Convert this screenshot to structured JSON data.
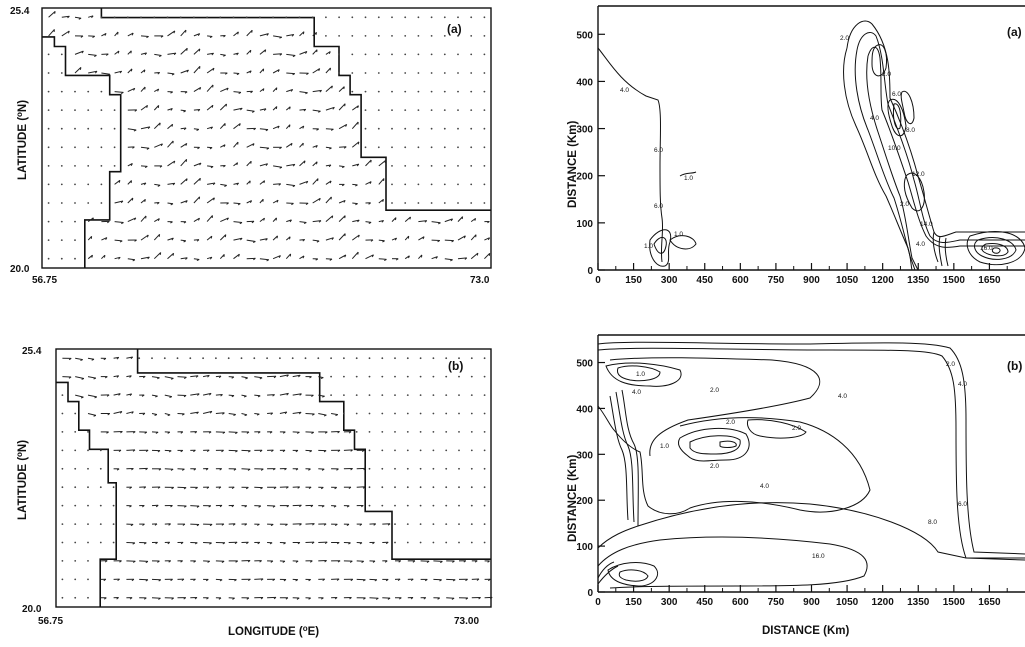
{
  "chart_data": [
    {
      "id": "wind-a",
      "type": "vector-field",
      "panel_label": "(a)",
      "ylabel": "LATITUDE (°N)",
      "ylabel_text": "LATITUDE (",
      "ylabel_sup": "o",
      "ylabel_tail": "N)",
      "xlabel": "",
      "x_tick_labels": [
        "56.75",
        "73.0"
      ],
      "y_tick_labels": [
        "20.0",
        "25.4"
      ],
      "xlim": [
        56.75,
        73.0
      ],
      "ylim": [
        20.0,
        25.4
      ],
      "coastline_steps": [
        [
          [
            58.9,
            25.4
          ],
          [
            58.9,
            25.2
          ],
          [
            66.6,
            25.2
          ],
          [
            66.6,
            24.6
          ],
          [
            67.5,
            24.6
          ],
          [
            67.5,
            24.0
          ],
          [
            67.9,
            24.0
          ],
          [
            67.9,
            23.6
          ],
          [
            68.3,
            23.6
          ],
          [
            68.3,
            22.3
          ],
          [
            69.2,
            22.3
          ],
          [
            69.2,
            21.2
          ],
          [
            73.0,
            21.2
          ]
        ],
        [
          [
            56.75,
            24.8
          ],
          [
            57.2,
            24.8
          ],
          [
            57.2,
            24.6
          ],
          [
            57.6,
            24.6
          ],
          [
            57.6,
            24.0
          ],
          [
            59.2,
            24.0
          ],
          [
            59.2,
            23.6
          ],
          [
            59.6,
            23.6
          ],
          [
            59.6,
            22.0
          ],
          [
            59.2,
            22.0
          ],
          [
            59.2,
            21.0
          ],
          [
            58.3,
            21.0
          ],
          [
            58.3,
            20.0
          ]
        ]
      ],
      "vector_flow": "mostly westerly flow, varied in the north"
    },
    {
      "id": "wind-b",
      "type": "vector-field",
      "panel_label": "(b)",
      "ylabel": "LATITUDE (°N)",
      "ylabel_text": "LATITUDE (",
      "ylabel_sup": "o",
      "ylabel_tail": "N)",
      "xlabel": "LONGITUDE (°E)",
      "xlabel_text": "LONGITUDE (",
      "xlabel_sup": "o",
      "xlabel_tail": "E)",
      "x_tick_labels": [
        "56.75",
        "73.00"
      ],
      "y_tick_labels": [
        "20.0",
        "25.4"
      ],
      "xlim": [
        56.75,
        73.0
      ],
      "ylim": [
        20.0,
        25.4
      ],
      "coastline_steps": [
        [
          [
            59.8,
            25.4
          ],
          [
            59.8,
            24.9
          ],
          [
            66.6,
            24.9
          ],
          [
            66.6,
            24.3
          ],
          [
            67.5,
            24.3
          ],
          [
            67.5,
            23.7
          ],
          [
            67.9,
            23.7
          ],
          [
            67.9,
            23.3
          ],
          [
            68.3,
            23.3
          ],
          [
            68.3,
            22.0
          ],
          [
            69.3,
            22.0
          ],
          [
            69.3,
            21.0
          ],
          [
            73.0,
            21.0
          ]
        ],
        [
          [
            56.75,
            24.7
          ],
          [
            57.2,
            24.7
          ],
          [
            57.2,
            24.3
          ],
          [
            57.6,
            24.3
          ],
          [
            57.6,
            23.7
          ],
          [
            58.0,
            23.7
          ],
          [
            58.0,
            23.3
          ],
          [
            58.7,
            23.3
          ],
          [
            58.7,
            22.6
          ],
          [
            59.0,
            22.6
          ],
          [
            59.0,
            21.0
          ],
          [
            58.4,
            21.0
          ],
          [
            58.4,
            20.0
          ]
        ]
      ],
      "vector_flow": "easterly flow across the basin"
    },
    {
      "id": "contour-a",
      "type": "contour",
      "panel_label": "(a)",
      "ylabel": "DISTANCE (Km)",
      "xlabel": "",
      "x_ticks": [
        0,
        150,
        300,
        450,
        600,
        750,
        900,
        1050,
        1200,
        1350,
        1500,
        1650
      ],
      "y_ticks": [
        0,
        100,
        200,
        300,
        400,
        500
      ],
      "xlim": [
        0,
        1800
      ],
      "ylim": [
        0,
        560
      ],
      "contour_labels": [
        "4.0",
        "6.0",
        "6.0",
        "1.0",
        "1.0",
        "1.0",
        "2.0",
        "2.0",
        "4.0",
        "6.0",
        "8.0",
        "10.0",
        "12.0",
        "14.0",
        "16.0",
        "2.0",
        "4.0"
      ]
    },
    {
      "id": "contour-b",
      "type": "contour",
      "panel_label": "(b)",
      "ylabel": "DISTANCE (Km)",
      "xlabel": "DISTANCE (Km)",
      "x_ticks": [
        0,
        150,
        300,
        450,
        600,
        750,
        900,
        1050,
        1200,
        1350,
        1500,
        1650
      ],
      "y_ticks": [
        0,
        100,
        200,
        300,
        400,
        500
      ],
      "xlim": [
        0,
        1800
      ],
      "ylim": [
        0,
        560
      ],
      "contour_labels": [
        "1.0",
        "4.0",
        "2.0",
        "2.0",
        "2.0",
        "4.0",
        "4.0",
        "2.0",
        "1.0",
        "6.0",
        "8.0",
        "16.0",
        "2.0",
        "4.0"
      ]
    }
  ]
}
